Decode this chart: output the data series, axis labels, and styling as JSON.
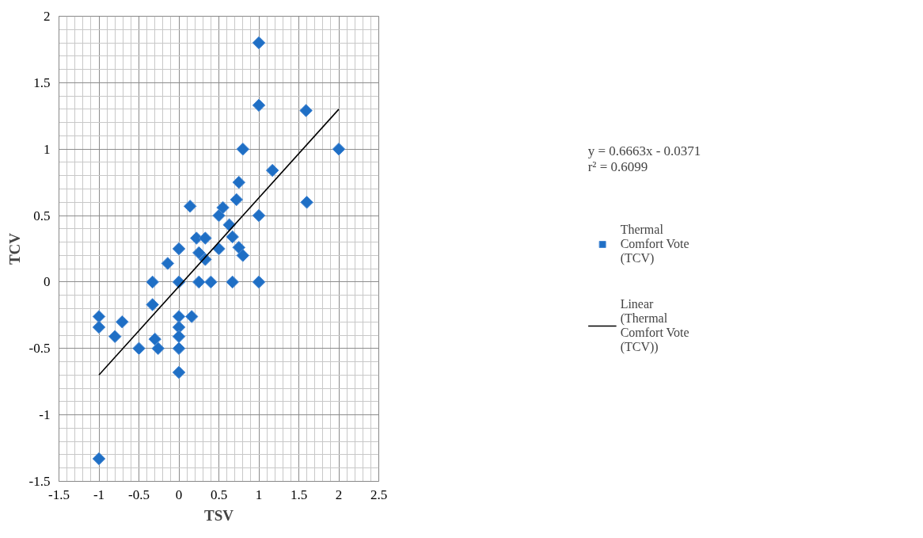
{
  "chart_data": {
    "type": "scatter",
    "xlabel": "TSV",
    "ylabel": "TCV",
    "annotations": [
      "y = 0.6663x - 0.0371",
      "r² = 0.6099"
    ],
    "xlim": [
      -1.5,
      2.5
    ],
    "ylim": [
      -1.5,
      2
    ],
    "xticks": [
      -1.5,
      -1,
      -0.5,
      0,
      0.5,
      1,
      1.5,
      2,
      2.5
    ],
    "yticks": [
      -1.5,
      -1,
      -0.5,
      0,
      0.5,
      1,
      1.5,
      2
    ],
    "grid": true,
    "legend": "right",
    "marker": "diamond",
    "series": [
      {
        "name": "Thermal Comfort Vote (TCV)",
        "color": "#1f6fc5",
        "x": [
          0.14,
          0.22,
          0.33,
          0,
          0.25,
          0.33,
          -0.14,
          -0.33,
          0,
          0.25,
          0.4,
          -0.33,
          0.5,
          0.5,
          1,
          1,
          1.59,
          2,
          0.8,
          1.17,
          0.75,
          0.72,
          1.6,
          0.55,
          1,
          0.63,
          0.67,
          0.75,
          0.8,
          0.67,
          1,
          -1,
          -1,
          -0.71,
          -0.8,
          -0.5,
          -0.3,
          -0.26,
          0,
          0,
          0,
          0,
          0,
          0.16,
          -1
        ],
        "values": [
          0.57,
          0.33,
          0.33,
          0.25,
          0.22,
          0.17,
          0.14,
          0,
          0,
          0,
          0,
          -0.17,
          0.5,
          0.25,
          1.8,
          1.33,
          1.29,
          1,
          1,
          0.84,
          0.75,
          0.62,
          0.6,
          0.56,
          0.5,
          0.43,
          0.34,
          0.26,
          0.2,
          0,
          0,
          -0.26,
          -0.34,
          -0.3,
          -0.41,
          -0.5,
          -0.43,
          -0.5,
          -0.26,
          -0.34,
          -0.41,
          -0.5,
          -0.68,
          -0.26,
          -1.33
        ]
      },
      {
        "name": "Linear (Thermal Comfort Vote (TCV))",
        "type": "line",
        "marker": "none",
        "color": "#000000",
        "line_style": "solid",
        "x": [
          -1,
          2
        ],
        "values": [
          -0.7,
          1.3
        ]
      }
    ]
  }
}
